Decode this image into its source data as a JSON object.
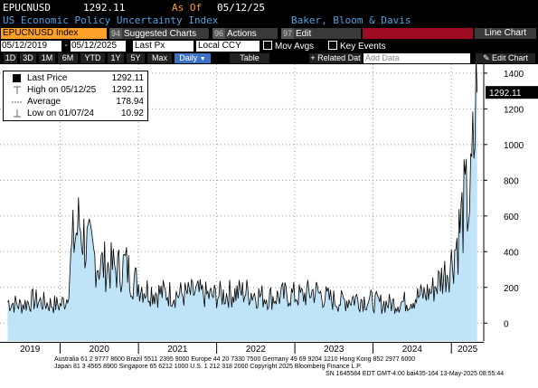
{
  "header": {
    "ticker": "EPUCNUSD",
    "last": "1292.11",
    "as_of_label": "As Of",
    "as_of_date": "05/12/25",
    "name": "US Economic Policy Uncertainty Index",
    "source": "Baker, Bloom & Davis"
  },
  "toolbar": {
    "security": "EPUCNUSD Index",
    "suggested_num": "94",
    "suggested": "Suggested Charts",
    "actions_num": "96",
    "actions": "Actions",
    "edit_num": "97",
    "edit": "Edit",
    "view": "Line Chart"
  },
  "controls": {
    "start_date": "05/12/2019",
    "end_date": "05/12/2025",
    "field": "Last Px",
    "currency": "Local CCY",
    "mov_avgs": "Mov Avgs",
    "key_events": "Key Events"
  },
  "periods": [
    "1D",
    "3D",
    "1M",
    "6M",
    "YTD",
    "1Y",
    "5Y",
    "Max"
  ],
  "frequency": "Daily",
  "table_btn": "Table",
  "related": "Related Dat",
  "add_data": "Add Data",
  "edit_chart": "Edit Chart",
  "legend": {
    "last_label": "Last Price",
    "last_value": "1292.11",
    "high_label": "High on 05/12/25",
    "high_value": "1292.11",
    "avg_label": "Average",
    "avg_value": "178.94",
    "low_label": "Low on 01/07/24",
    "low_value": "10.92"
  },
  "colors": {
    "accent": "#ffa028",
    "area": "#bfe3f7",
    "line": "#000000"
  },
  "chart_data": {
    "type": "area",
    "title": "US Economic Policy Uncertainty Index",
    "ylim": [
      -100,
      1450
    ],
    "yticks": [
      0,
      200,
      400,
      600,
      800,
      1000,
      1200,
      1400
    ],
    "xticks": [
      "2019",
      "2020",
      "2021",
      "2022",
      "2023",
      "2024",
      "2025"
    ],
    "last_value_label": "1292.11",
    "series": [
      {
        "x": [
          "2019-05",
          "2019-07",
          "2019-09",
          "2019-11",
          "2020-01",
          "2020-02",
          "2020-03",
          "2020-04",
          "2020-05",
          "2020-06",
          "2020-07",
          "2020-08",
          "2020-09",
          "2020-10",
          "2020-11",
          "2020-12",
          "2021-02",
          "2021-04",
          "2021-06",
          "2021-08",
          "2021-10",
          "2021-12",
          "2022-02",
          "2022-04",
          "2022-06",
          "2022-08",
          "2022-10",
          "2022-12",
          "2023-02",
          "2023-04",
          "2023-06",
          "2023-08",
          "2023-10",
          "2023-12",
          "2024-02",
          "2024-04",
          "2024-06",
          "2024-08",
          "2024-10",
          "2024-11",
          "2024-12",
          "2025-01",
          "2025-02",
          "2025-03",
          "2025-04",
          "2025-05"
        ],
        "values": [
          120,
          100,
          130,
          110,
          100,
          140,
          450,
          560,
          440,
          380,
          330,
          320,
          310,
          300,
          330,
          250,
          190,
          170,
          165,
          160,
          170,
          150,
          160,
          170,
          175,
          150,
          145,
          160,
          150,
          180,
          140,
          120,
          140,
          130,
          110,
          110,
          120,
          150,
          180,
          230,
          280,
          340,
          480,
          650,
          700,
          1292.11
        ]
      }
    ]
  },
  "footer": {
    "line1": "Australia 61 2 9777 8600  Brazil 5511 2395 9000  Europe 44 20 7330 7500  Germany 49 69 9204 1210  Hong Kong 852 2977 6000",
    "line2": "Japan 81 3 4565 8900          Singapore 65 6212 1000          U.S. 1 212 318 2000          Copyright 2025 Bloomberg Finance L.P.",
    "line3": "SN 1645584 EDT  GMT-4:00 bai435-164  13-May-2025 08:55:44"
  }
}
